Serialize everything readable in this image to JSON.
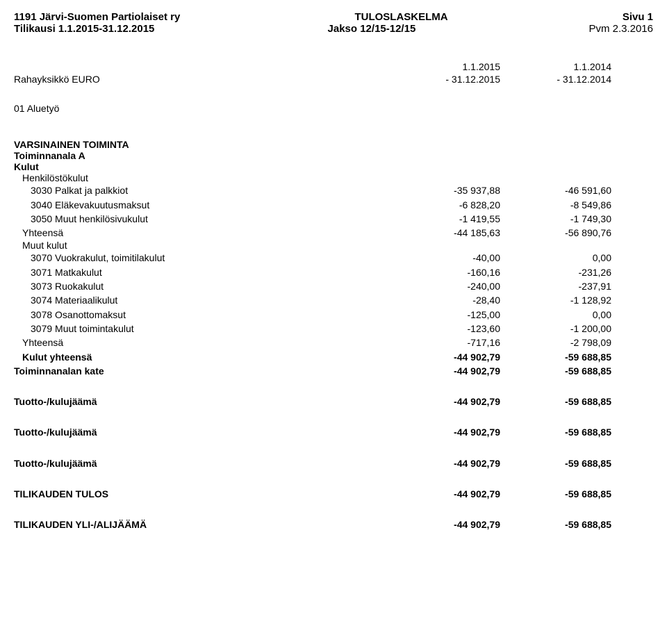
{
  "header": {
    "org": "1191 Järvi-Suomen Partiolaiset ry",
    "title": "TULOSLASKELMA",
    "page": "Sivu 1",
    "fiscal": "Tilikausi 1.1.2015-31.12.2015",
    "period": "Jakso 12/15-12/15",
    "date": "Pvm 2.3.2016"
  },
  "columns": {
    "currency_label": "Rahayksikkö EURO",
    "col1_top": "1.1.2015",
    "col1_bot": "- 31.12.2015",
    "col2_top": "1.1.2014",
    "col2_bot": "- 31.12.2014"
  },
  "section_code": "01 Aluetyö",
  "varsinainen": "VARSINAINEN TOIMINTA",
  "toiminnanala": "Toiminnanala A",
  "kulut": "Kulut",
  "henkilosto": "Henkilöstökulut",
  "muut_kulut": "Muut kulut",
  "lines": {
    "l3030": {
      "label": "3030 Palkat ja palkkiot",
      "v1": "-35 937,88",
      "v2": "-46 591,60"
    },
    "l3040": {
      "label": "3040 Eläkevakuutusmaksut",
      "v1": "-6 828,20",
      "v2": "-8 549,86"
    },
    "l3050": {
      "label": "3050 Muut henkilösivukulut",
      "v1": "-1 419,55",
      "v2": "-1 749,30"
    },
    "yht1": {
      "label": "Yhteensä",
      "v1": "-44 185,63",
      "v2": "-56 890,76"
    },
    "l3070": {
      "label": "3070 Vuokrakulut, toimitilakulut",
      "v1": "-40,00",
      "v2": "0,00"
    },
    "l3071": {
      "label": "3071 Matkakulut",
      "v1": "-160,16",
      "v2": "-231,26"
    },
    "l3073": {
      "label": "3073 Ruokakulut",
      "v1": "-240,00",
      "v2": "-237,91"
    },
    "l3074": {
      "label": "3074 Materiaalikulut",
      "v1": "-28,40",
      "v2": "-1 128,92"
    },
    "l3078": {
      "label": "3078 Osanottomaksut",
      "v1": "-125,00",
      "v2": "0,00"
    },
    "l3079": {
      "label": "3079 Muut toimintakulut",
      "v1": "-123,60",
      "v2": "-1 200,00"
    },
    "yht2": {
      "label": "Yhteensä",
      "v1": "-717,16",
      "v2": "-2 798,09"
    },
    "kulut_yht": {
      "label": "Kulut yhteensä",
      "v1": "-44 902,79",
      "v2": "-59 688,85"
    },
    "kate": {
      "label": "Toiminnanalan kate",
      "v1": "-44 902,79",
      "v2": "-59 688,85"
    }
  },
  "footer": {
    "tuotto1": {
      "label": "Tuotto-/kulujäämä",
      "v1": "-44 902,79",
      "v2": "-59 688,85"
    },
    "tuotto2": {
      "label": "Tuotto-/kulujäämä",
      "v1": "-44 902,79",
      "v2": "-59 688,85"
    },
    "tuotto3": {
      "label": "Tuotto-/kulujäämä",
      "v1": "-44 902,79",
      "v2": "-59 688,85"
    },
    "tulos": {
      "label": "TILIKAUDEN TULOS",
      "v1": "-44 902,79",
      "v2": "-59 688,85"
    },
    "yli": {
      "label": "TILIKAUDEN YLI-/ALIJÄÄMÄ",
      "v1": "-44 902,79",
      "v2": "-59 688,85"
    }
  }
}
